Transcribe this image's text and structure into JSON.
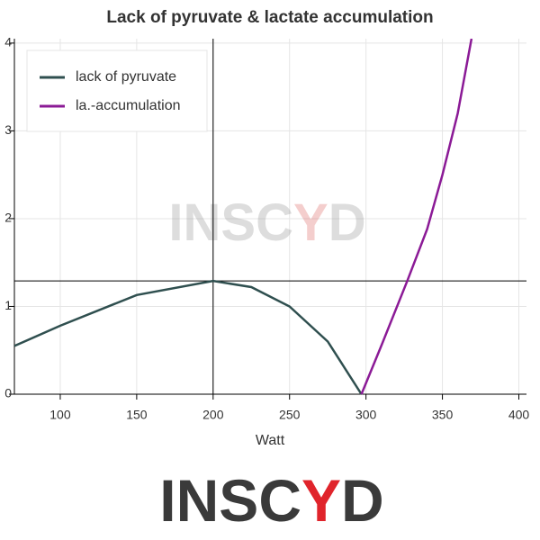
{
  "chart_data": {
    "type": "line",
    "title": "Lack of pyruvate & lactate accumulation",
    "x_label": "Watt",
    "xlim": [
      70,
      405
    ],
    "xticks": [
      100,
      150,
      200,
      250,
      300,
      350,
      400
    ],
    "ylim": [
      0,
      4.05
    ],
    "yticks": [
      0,
      1,
      2,
      3,
      4
    ],
    "grid": true,
    "legend": "top-left",
    "crosshair": {
      "x": 200,
      "y": 1.29
    },
    "series": [
      {
        "name": "lack of pyruvate",
        "color": "#2f4f4f",
        "x": [
          70,
          100,
          150,
          200,
          225,
          250,
          275,
          297
        ],
        "values": [
          0.55,
          0.78,
          1.13,
          1.29,
          1.22,
          1.0,
          0.6,
          0
        ]
      },
      {
        "name": "la.-accumulation",
        "color": "#8b1a96",
        "x": [
          297,
          310,
          327,
          340,
          350,
          360,
          369
        ],
        "values": [
          0,
          0.55,
          1.29,
          1.88,
          2.5,
          3.2,
          4.05
        ]
      }
    ],
    "watermark": [
      "INSC",
      "Y",
      "D"
    ]
  }
}
